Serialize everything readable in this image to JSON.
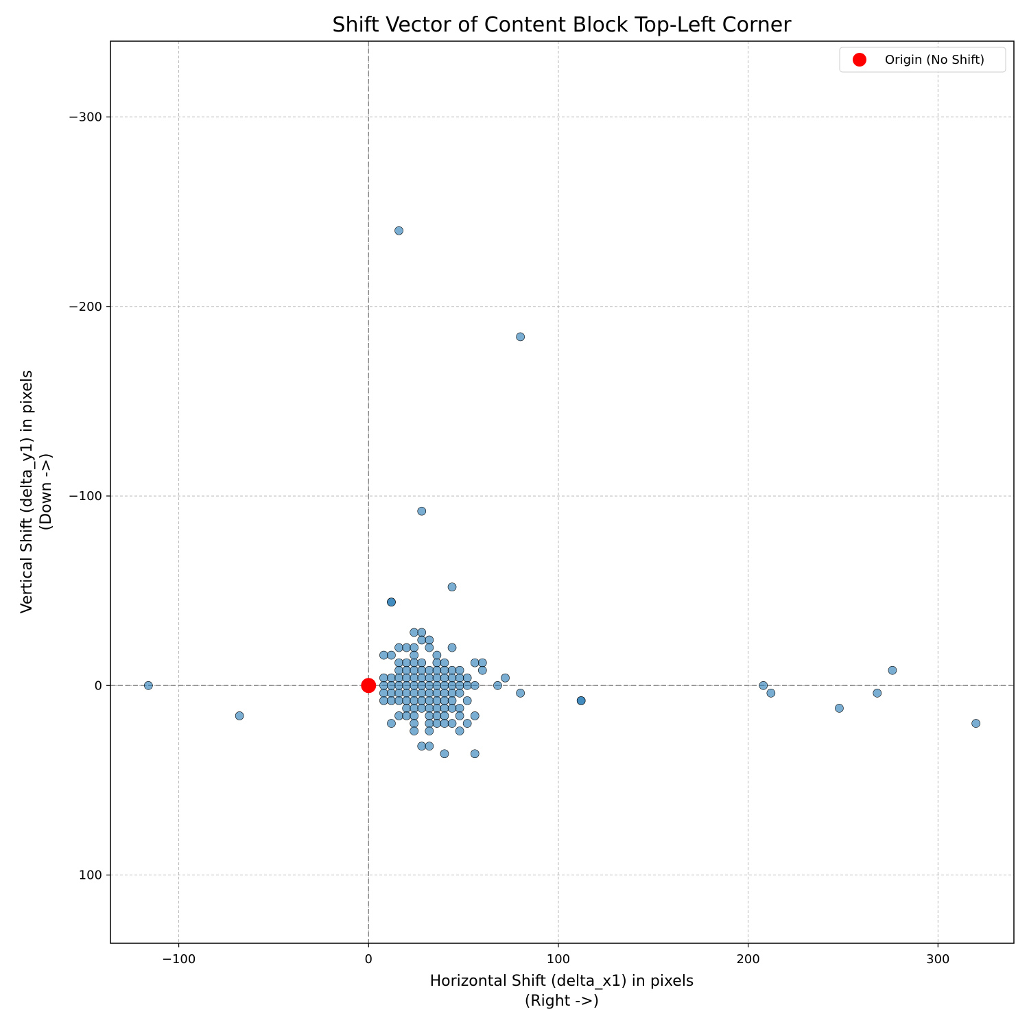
{
  "chart_data": {
    "type": "scatter",
    "title": "Shift Vector of Content Block Top-Left Corner",
    "xlabel": [
      "Horizontal Shift (delta_x1) in pixels",
      "(Right ->)"
    ],
    "ylabel": [
      "Vertical Shift (delta_y1) in pixels",
      "(Down ->)"
    ],
    "xlim": [
      -136,
      340
    ],
    "ylim": [
      -340,
      136
    ],
    "y_inverted": true,
    "grid": true,
    "reference_lines": {
      "x": 0,
      "y": 0
    },
    "xticks": [
      -100,
      0,
      100,
      200,
      300
    ],
    "xtick_labels": [
      "−100",
      "0",
      "100",
      "200",
      "300"
    ],
    "yticks": [
      -300,
      -200,
      -100,
      0,
      100
    ],
    "ytick_labels": [
      "−300",
      "−200",
      "−100",
      "0",
      "100"
    ],
    "legend": {
      "position": "top-right",
      "entries": [
        {
          "label": "Origin (No Shift)",
          "color": "#ff0000"
        }
      ]
    },
    "colors": {
      "points": "#1f77b4",
      "origin": "#ff0000",
      "grid": "#b0b0b0",
      "reference": "#808080"
    },
    "origin_point": {
      "x": 0,
      "y": 0
    },
    "series": [
      {
        "points": [
          [
            -116,
            0
          ],
          [
            -68,
            16
          ],
          [
            16,
            -240
          ],
          [
            80,
            -184
          ],
          [
            28,
            -92
          ],
          [
            44,
            -52
          ],
          [
            12,
            -44
          ],
          [
            12,
            -44
          ],
          [
            24,
            -28
          ],
          [
            28,
            -28
          ],
          [
            28,
            -24
          ],
          [
            32,
            -24
          ],
          [
            16,
            -20
          ],
          [
            20,
            -20
          ],
          [
            24,
            -20
          ],
          [
            32,
            -20
          ],
          [
            44,
            -20
          ],
          [
            8,
            -16
          ],
          [
            12,
            -16
          ],
          [
            24,
            -16
          ],
          [
            36,
            -16
          ],
          [
            16,
            -12
          ],
          [
            20,
            -12
          ],
          [
            24,
            -12
          ],
          [
            28,
            -12
          ],
          [
            36,
            -12
          ],
          [
            40,
            -12
          ],
          [
            56,
            -12
          ],
          [
            60,
            -12
          ],
          [
            16,
            -8
          ],
          [
            20,
            -8
          ],
          [
            24,
            -8
          ],
          [
            28,
            -8
          ],
          [
            32,
            -8
          ],
          [
            36,
            -8
          ],
          [
            40,
            -8
          ],
          [
            44,
            -8
          ],
          [
            48,
            -8
          ],
          [
            60,
            -8
          ],
          [
            8,
            -4
          ],
          [
            12,
            -4
          ],
          [
            16,
            -4
          ],
          [
            20,
            -4
          ],
          [
            24,
            -4
          ],
          [
            28,
            -4
          ],
          [
            32,
            -4
          ],
          [
            36,
            -4
          ],
          [
            40,
            -4
          ],
          [
            44,
            -4
          ],
          [
            48,
            -4
          ],
          [
            52,
            -4
          ],
          [
            72,
            -4
          ],
          [
            0,
            0
          ],
          [
            8,
            0
          ],
          [
            12,
            0
          ],
          [
            16,
            0
          ],
          [
            20,
            0
          ],
          [
            24,
            0
          ],
          [
            28,
            0
          ],
          [
            32,
            0
          ],
          [
            36,
            0
          ],
          [
            40,
            0
          ],
          [
            44,
            0
          ],
          [
            48,
            0
          ],
          [
            52,
            0
          ],
          [
            56,
            0
          ],
          [
            68,
            0
          ],
          [
            8,
            4
          ],
          [
            12,
            4
          ],
          [
            16,
            4
          ],
          [
            20,
            4
          ],
          [
            24,
            4
          ],
          [
            28,
            4
          ],
          [
            32,
            4
          ],
          [
            36,
            4
          ],
          [
            40,
            4
          ],
          [
            44,
            4
          ],
          [
            48,
            4
          ],
          [
            80,
            4
          ],
          [
            8,
            8
          ],
          [
            12,
            8
          ],
          [
            16,
            8
          ],
          [
            20,
            8
          ],
          [
            24,
            8
          ],
          [
            28,
            8
          ],
          [
            32,
            8
          ],
          [
            36,
            8
          ],
          [
            40,
            8
          ],
          [
            44,
            8
          ],
          [
            52,
            8
          ],
          [
            112,
            8
          ],
          [
            112,
            8
          ],
          [
            20,
            12
          ],
          [
            24,
            12
          ],
          [
            28,
            12
          ],
          [
            32,
            12
          ],
          [
            36,
            12
          ],
          [
            40,
            12
          ],
          [
            44,
            12
          ],
          [
            48,
            12
          ],
          [
            16,
            16
          ],
          [
            20,
            16
          ],
          [
            24,
            16
          ],
          [
            32,
            16
          ],
          [
            36,
            16
          ],
          [
            40,
            16
          ],
          [
            48,
            16
          ],
          [
            56,
            16
          ],
          [
            12,
            20
          ],
          [
            24,
            20
          ],
          [
            32,
            20
          ],
          [
            36,
            20
          ],
          [
            40,
            20
          ],
          [
            44,
            20
          ],
          [
            52,
            20
          ],
          [
            24,
            24
          ],
          [
            32,
            24
          ],
          [
            48,
            24
          ],
          [
            28,
            32
          ],
          [
            32,
            32
          ],
          [
            40,
            36
          ],
          [
            56,
            36
          ],
          [
            208,
            0
          ],
          [
            212,
            4
          ],
          [
            248,
            12
          ],
          [
            268,
            4
          ],
          [
            276,
            -8
          ],
          [
            320,
            20
          ]
        ]
      }
    ]
  }
}
